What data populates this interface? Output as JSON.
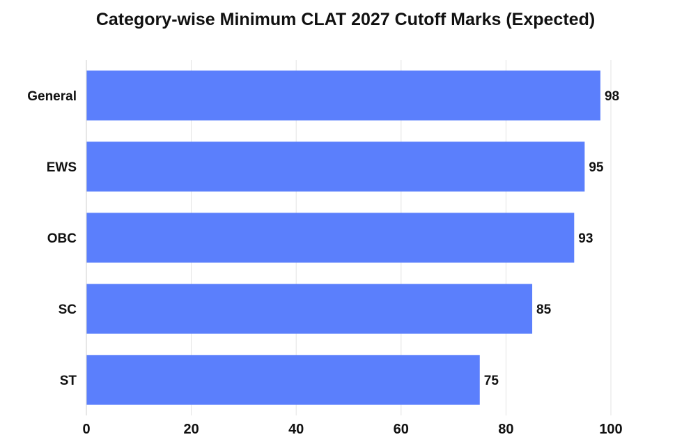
{
  "chart_data": {
    "type": "bar",
    "orientation": "horizontal",
    "title": "Category-wise Minimum CLAT 2027 Cutoff Marks (Expected)",
    "categories": [
      "General",
      "EWS",
      "OBC",
      "SC",
      "ST"
    ],
    "values": [
      98,
      95,
      93,
      85,
      75
    ],
    "xlabel": "",
    "ylabel": "",
    "xlim": [
      0,
      100
    ],
    "x_ticks": [
      0,
      20,
      40,
      60,
      80,
      100
    ],
    "grid": "vertical",
    "bar_color": "#5b7ffc",
    "grid_color": "#e3e3e3",
    "axis_color": "#cfcfcf"
  }
}
